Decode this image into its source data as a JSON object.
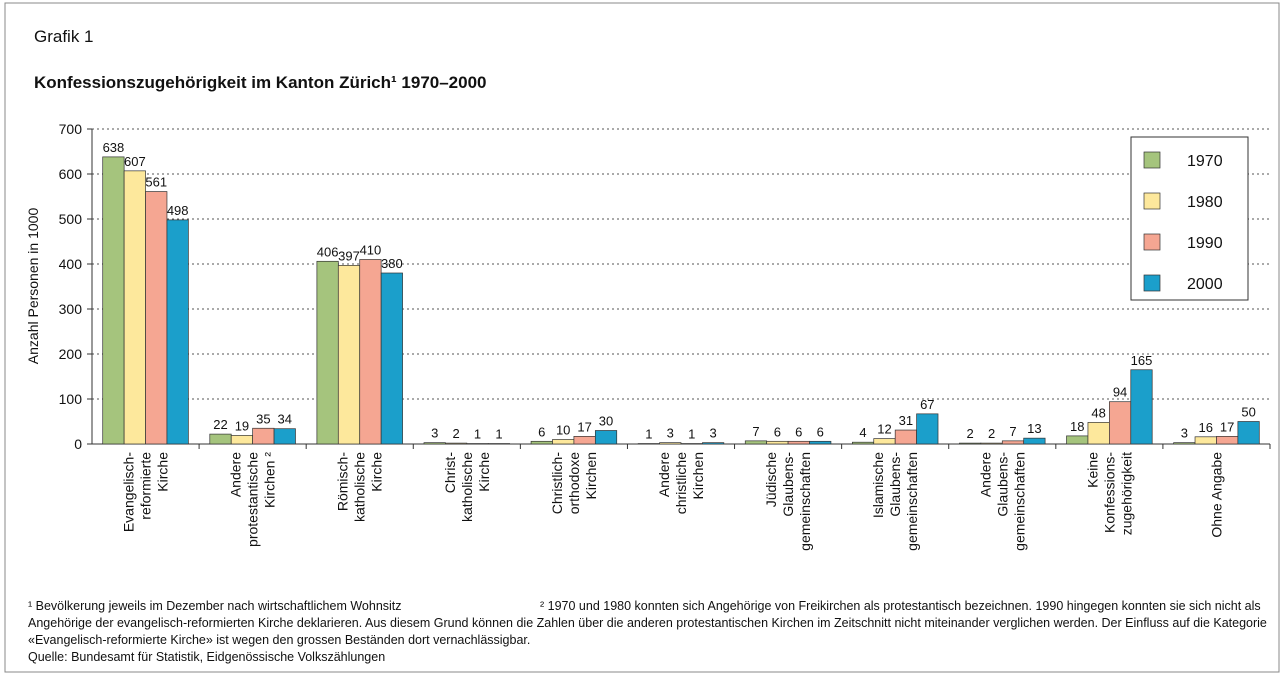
{
  "heading": "Grafik 1",
  "chart_data": {
    "type": "bar",
    "title": "Konfessionszugehörigkeit im Kanton Zürich¹ 1970–2000",
    "ylabel": "Anzahl Personen in 1000",
    "categories": [
      "Evangelisch-\nreformierte\nKirche",
      "Andere\nprotestantische\nKirchen ²",
      "Römisch-\nkatholische\nKirche",
      "Christ-\nkatholische\nKirche",
      "Christlich-\northodoxe\nKirchen",
      "Andere\nchristliche\nKirchen",
      "Jüdische\nGlaubens-\ngemeinschaften",
      "Islamische\nGlaubens-\ngemeinschaften",
      "Andere\nGlaubens-\ngemeinschaften",
      "Keine\nKonfessions-\nzugehörigkeit",
      "Ohne Angabe"
    ],
    "series": [
      {
        "name": "1970",
        "color": "#a5c47d",
        "values": [
          638,
          22,
          406,
          3,
          6,
          1,
          7,
          4,
          2,
          18,
          3
        ]
      },
      {
        "name": "1980",
        "color": "#fde89c",
        "values": [
          607,
          19,
          397,
          2,
          10,
          3,
          6,
          12,
          2,
          48,
          16
        ]
      },
      {
        "name": "1990",
        "color": "#f5a692",
        "values": [
          561,
          35,
          410,
          1,
          17,
          1,
          6,
          31,
          7,
          94,
          17
        ]
      },
      {
        "name": "2000",
        "color": "#1b9fcb",
        "values": [
          498,
          34,
          380,
          1,
          30,
          3,
          6,
          67,
          13,
          165,
          50
        ]
      }
    ],
    "ylim": [
      0,
      700
    ],
    "yticks": [
      0,
      100,
      200,
      300,
      400,
      500,
      600,
      700
    ],
    "grid": true,
    "legend": "top-right"
  },
  "notes": {
    "note1": "¹ Bevölkerung jeweils im Dezember nach wirtschaftlichem Wohnsitz",
    "note2": "² 1970 und 1980 konnten sich Angehörige von Freikirchen als protestantisch bezeichnen. 1990 hingegen konnten sie sich nicht als Angehörige der evangelisch-reformierten Kirche deklarieren. Aus diesem Grund können die Zahlen über die anderen protestantischen Kirchen im Zeitschnitt nicht miteinander verglichen werden. Der Einfluss auf die Kategorie «Evangelisch-reformierte Kirche» ist wegen den grossen Beständen dort vernachlässigbar.",
    "source": "Quelle: Bundesamt für Statistik, Eidgenössische Volkszählungen"
  }
}
